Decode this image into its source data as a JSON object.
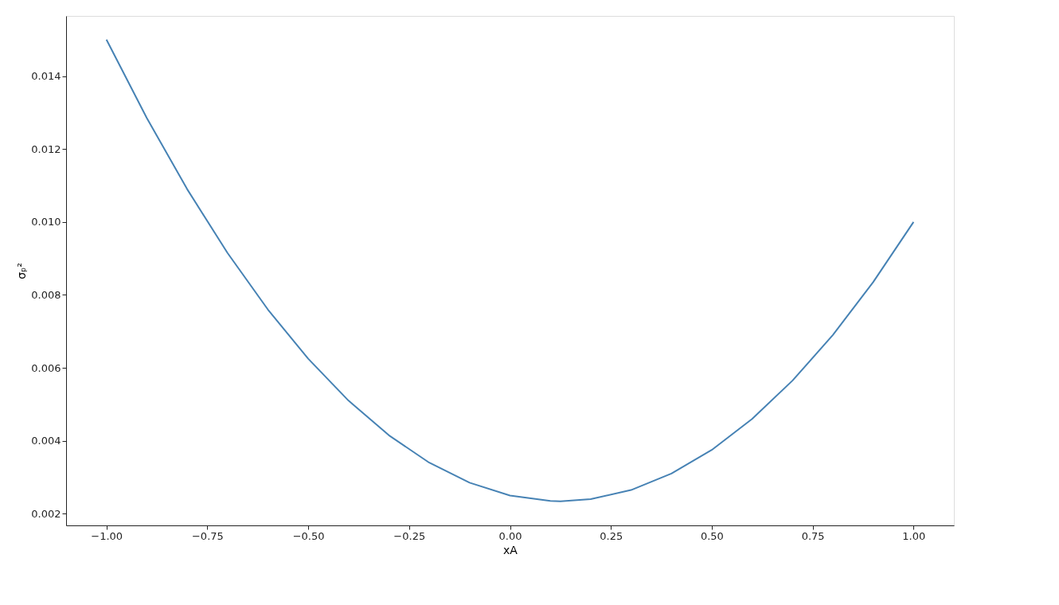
{
  "chart_data": {
    "type": "line",
    "xlabel": "xA",
    "ylabel": "σₚ²",
    "x": [
      -1.0,
      -0.9,
      -0.8,
      -0.7,
      -0.6,
      -0.5,
      -0.4,
      -0.3,
      -0.2,
      -0.1,
      0.0,
      0.1,
      0.125,
      0.2,
      0.3,
      0.4,
      0.5,
      0.6,
      0.7,
      0.8,
      0.9,
      1.0
    ],
    "series": [
      {
        "color": "#4682b4",
        "values": [
          0.015,
          0.01285,
          0.0109,
          0.00915,
          0.0076,
          0.00625,
          0.0051,
          0.00415,
          0.0034,
          0.00285,
          0.0025,
          0.00235,
          0.00234,
          0.0024,
          0.00265,
          0.0031,
          0.00375,
          0.0046,
          0.00565,
          0.0069,
          0.00835,
          0.01
        ]
      }
    ],
    "xlim": [
      -1.1,
      1.1
    ],
    "ylim": [
      0.00168,
      0.01565
    ],
    "xticks": [
      {
        "value": -1,
        "label": "−1.00"
      },
      {
        "value": -0.75,
        "label": "−0.75"
      },
      {
        "value": -0.5,
        "label": "−0.50"
      },
      {
        "value": -0.25,
        "label": "−0.25"
      },
      {
        "value": 0,
        "label": "0.00"
      },
      {
        "value": 0.25,
        "label": "0.25"
      },
      {
        "value": 0.5,
        "label": "0.50"
      },
      {
        "value": 0.75,
        "label": "0.75"
      },
      {
        "value": 1,
        "label": "1.00"
      }
    ],
    "yticks": [
      0.002,
      0.004,
      0.006,
      0.008,
      {
        "value": 0.01,
        "label": "0.010"
      },
      0.012,
      0.014
    ],
    "grid": false,
    "marker": "none",
    "line_style": "solid"
  }
}
